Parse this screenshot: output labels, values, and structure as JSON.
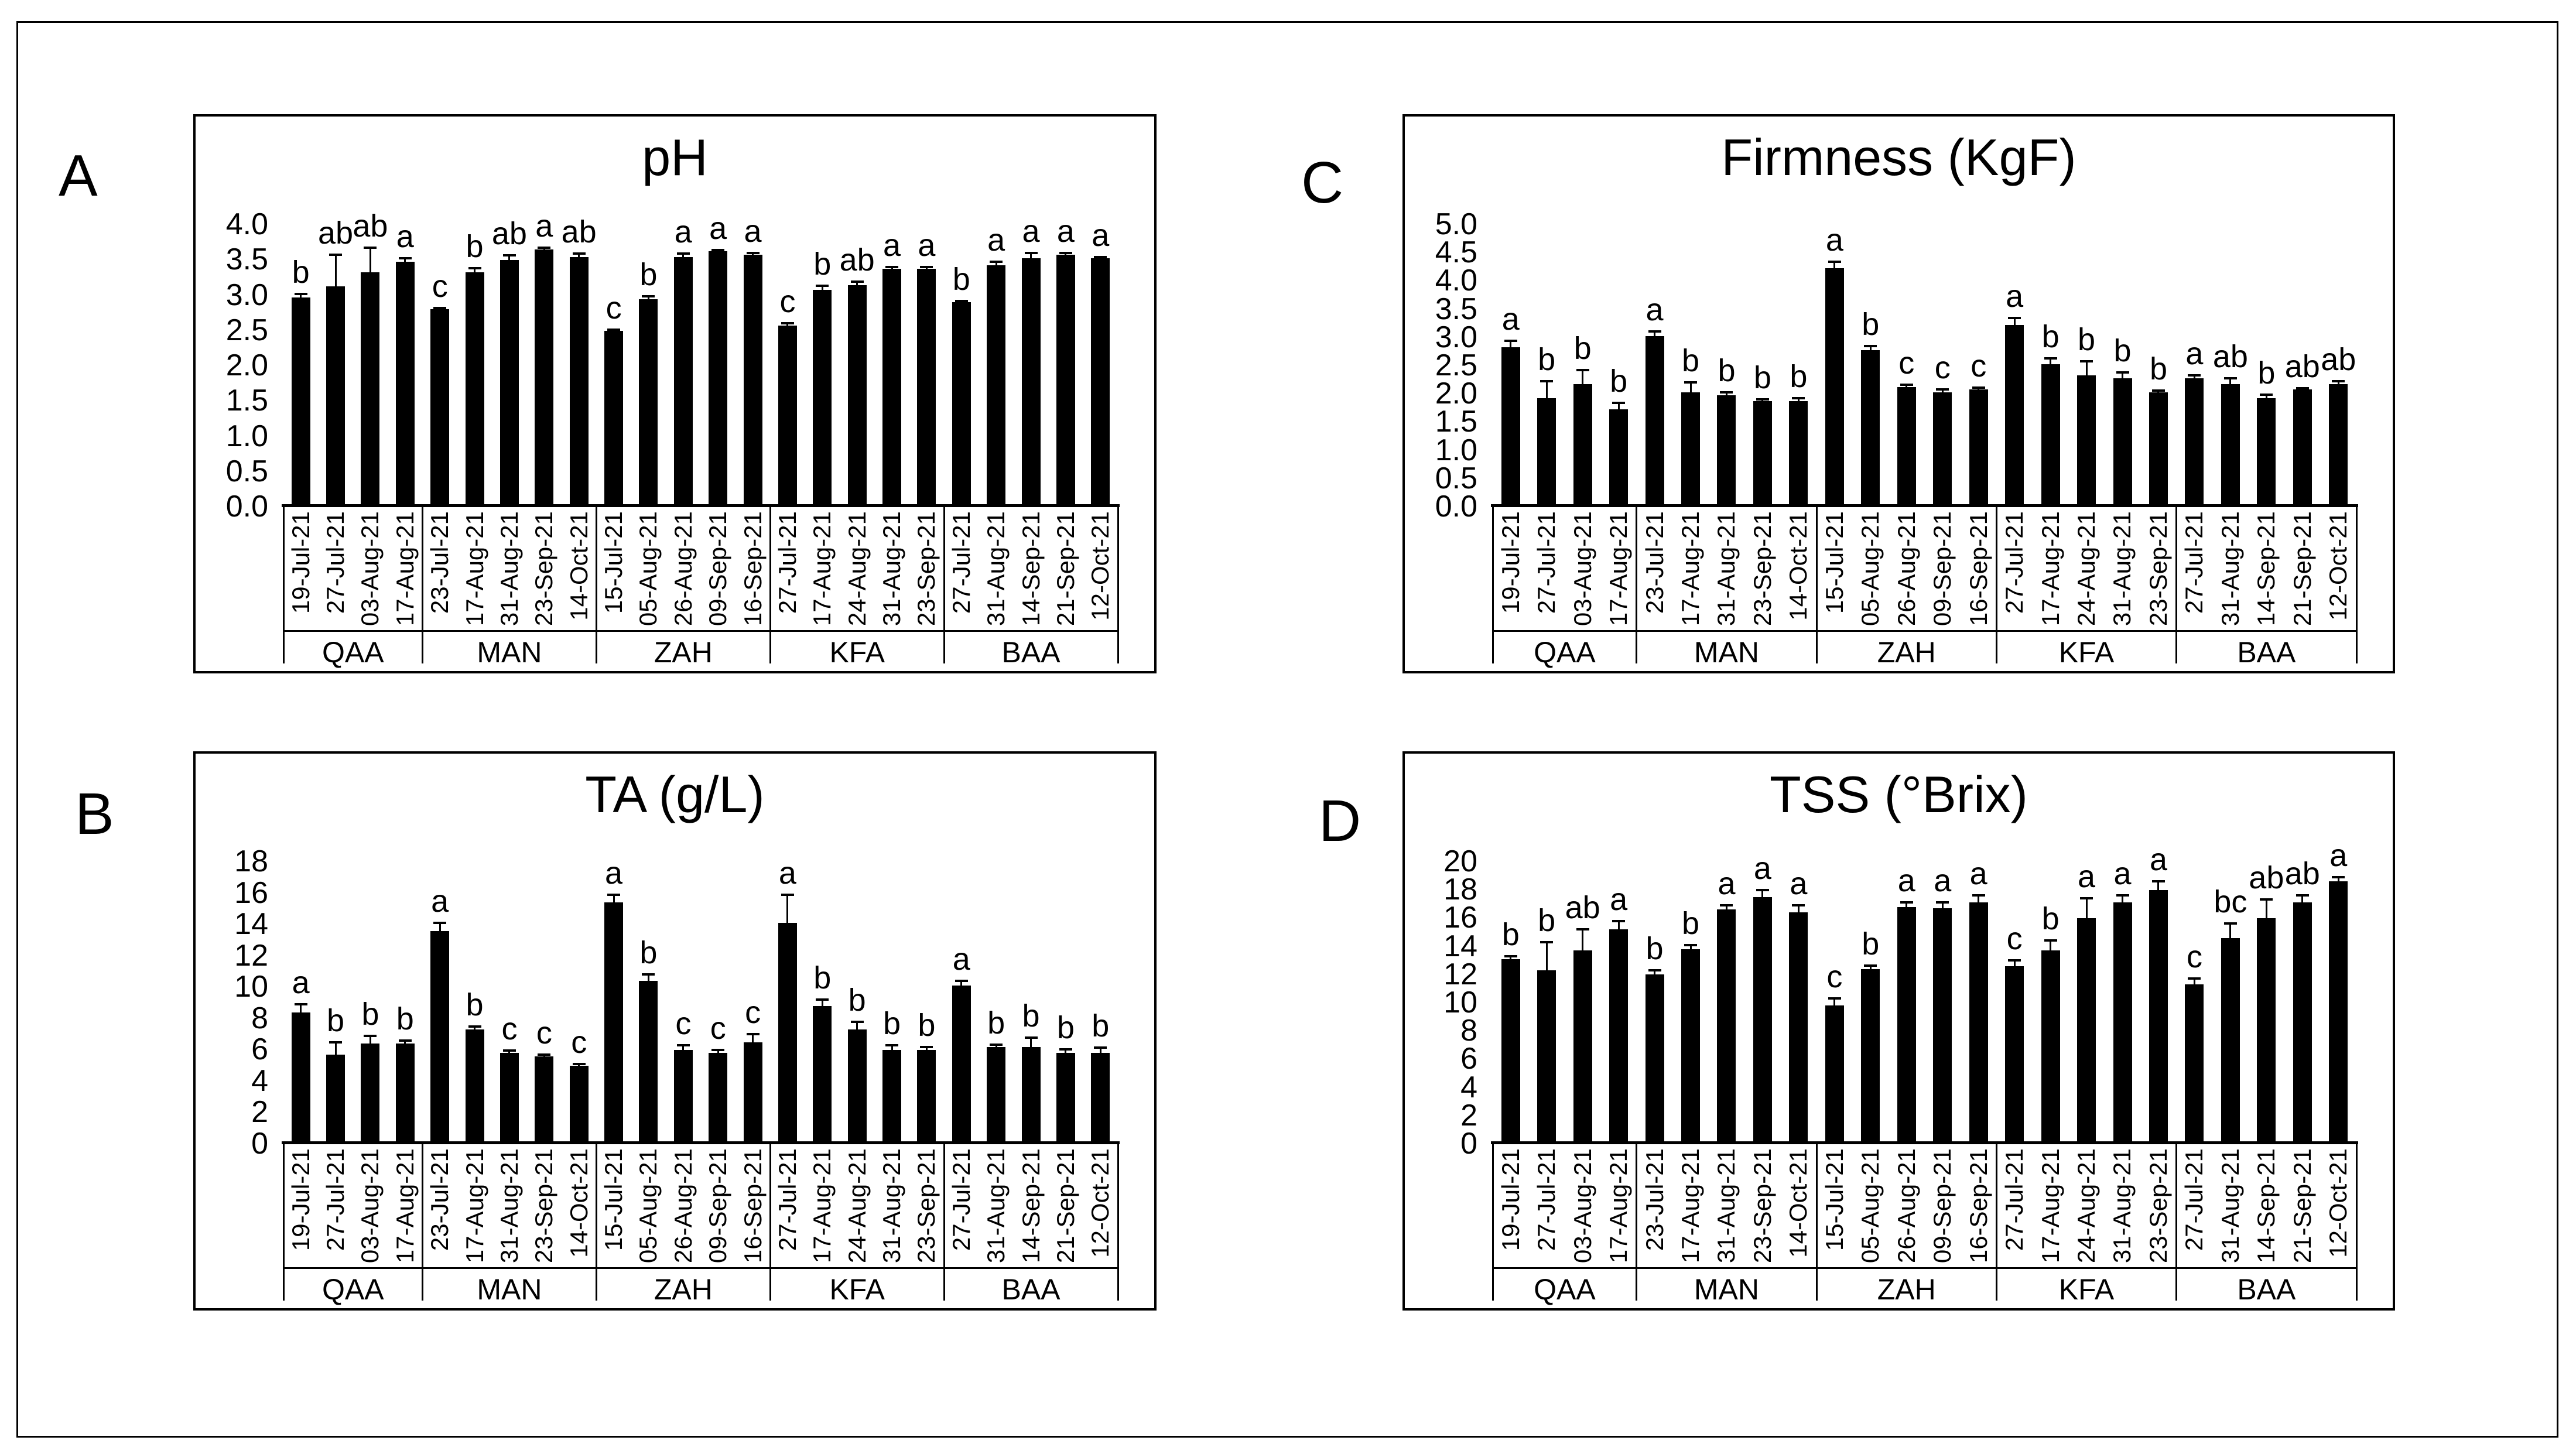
{
  "figure": {
    "background": "#ffffff",
    "bar_color": "#000000",
    "group_names": [
      "QAA",
      "MAN",
      "ZAH",
      "KFA",
      "BAA"
    ]
  },
  "chart_data": [
    {
      "type": "bar",
      "panel_label": "A",
      "title": "pH",
      "xlabel": "",
      "ylabel": "",
      "ylim": [
        0,
        4
      ],
      "ytick_step": 0.5,
      "ytick_decimals": 1,
      "grid": false,
      "bar_color": "#000000",
      "groups": [
        {
          "name": "QAA",
          "categories": [
            "19-Jul-21",
            "27-Jul-21",
            "03-Aug-21",
            "17-Aug-21"
          ],
          "values": [
            2.95,
            3.1,
            3.3,
            3.45
          ],
          "errors": [
            0.05,
            0.45,
            0.35,
            0.05
          ],
          "sig_letters": [
            "b",
            "ab",
            "ab",
            "a"
          ]
        },
        {
          "name": "MAN",
          "categories": [
            "23-Jul-21",
            "17-Aug-21",
            "31-Aug-21",
            "23-Sep-21",
            "14-Oct-21"
          ],
          "values": [
            2.78,
            3.3,
            3.48,
            3.63,
            3.52
          ],
          "errors": [
            0.02,
            0.06,
            0.06,
            0.02,
            0.05
          ],
          "sig_letters": [
            "c",
            "b",
            "ab",
            "a",
            "ab"
          ]
        },
        {
          "name": "ZAH",
          "categories": [
            "15-Jul-21",
            "05-Aug-21",
            "26-Aug-21",
            "09-Sep-21",
            "16-Sep-21"
          ],
          "values": [
            2.47,
            2.92,
            3.52,
            3.6,
            3.55
          ],
          "errors": [
            0.02,
            0.04,
            0.05,
            0.02,
            0.03
          ],
          "sig_letters": [
            "c",
            "b",
            "a",
            "a",
            "a"
          ]
        },
        {
          "name": "KFA",
          "categories": [
            "27-Jul-21",
            "17-Aug-21",
            "24-Aug-21",
            "31-Aug-21",
            "23-Sep-21"
          ],
          "values": [
            2.55,
            3.05,
            3.12,
            3.35,
            3.35
          ],
          "errors": [
            0.03,
            0.06,
            0.05,
            0.03,
            0.03
          ],
          "sig_letters": [
            "c",
            "b",
            "ab",
            "a",
            "a"
          ]
        },
        {
          "name": "BAA",
          "categories": [
            "27-Jul-21",
            "31-Aug-21",
            "14-Sep-21",
            "21-Sep-21",
            "12-Oct-21"
          ],
          "values": [
            2.88,
            3.4,
            3.5,
            3.55,
            3.5
          ],
          "errors": [
            0.02,
            0.05,
            0.08,
            0.03,
            0.02
          ],
          "sig_letters": [
            "b",
            "a",
            "a",
            "a",
            "a"
          ]
        }
      ]
    },
    {
      "type": "bar",
      "panel_label": "B",
      "title": "TA (g/L)",
      "xlabel": "",
      "ylabel": "",
      "ylim": [
        0,
        18
      ],
      "ytick_step": 2,
      "ytick_decimals": 0,
      "grid": false,
      "bar_color": "#000000",
      "groups": [
        {
          "name": "QAA",
          "categories": [
            "19-Jul-21",
            "27-Jul-21",
            "03-Aug-21",
            "17-Aug-21"
          ],
          "values": [
            8.3,
            5.6,
            6.3,
            6.3
          ],
          "errors": [
            0.5,
            0.8,
            0.5,
            0.2
          ],
          "sig_letters": [
            "a",
            "b",
            "b",
            "b"
          ]
        },
        {
          "name": "MAN",
          "categories": [
            "23-Jul-21",
            "17-Aug-21",
            "31-Aug-21",
            "23-Sep-21",
            "14-Oct-21"
          ],
          "values": [
            13.5,
            7.2,
            5.7,
            5.5,
            4.9
          ],
          "errors": [
            0.5,
            0.2,
            0.15,
            0.1,
            0.1
          ],
          "sig_letters": [
            "a",
            "b",
            "c",
            "c",
            "c"
          ]
        },
        {
          "name": "ZAH",
          "categories": [
            "15-Jul-21",
            "05-Aug-21",
            "26-Aug-21",
            "09-Sep-21",
            "16-Sep-21"
          ],
          "values": [
            15.3,
            10.3,
            5.9,
            5.7,
            6.4
          ],
          "errors": [
            0.5,
            0.4,
            0.3,
            0.2,
            0.5
          ],
          "sig_letters": [
            "a",
            "b",
            "c",
            "c",
            "c"
          ]
        },
        {
          "name": "KFA",
          "categories": [
            "27-Jul-21",
            "17-Aug-21",
            "24-Aug-21",
            "31-Aug-21",
            "23-Sep-21"
          ],
          "values": [
            14.0,
            8.7,
            7.2,
            5.9,
            5.9
          ],
          "errors": [
            1.8,
            0.4,
            0.5,
            0.3,
            0.2
          ],
          "sig_letters": [
            "a",
            "b",
            "b",
            "b",
            "b"
          ]
        },
        {
          "name": "BAA",
          "categories": [
            "27-Jul-21",
            "31-Aug-21",
            "14-Sep-21",
            "21-Sep-21",
            "12-Oct-21"
          ],
          "values": [
            10.0,
            6.1,
            6.1,
            5.7,
            5.7
          ],
          "errors": [
            0.3,
            0.15,
            0.6,
            0.25,
            0.35
          ],
          "sig_letters": [
            "a",
            "b",
            "b",
            "b",
            "b"
          ]
        }
      ]
    },
    {
      "type": "bar",
      "panel_label": "C",
      "title": "Firmness (KgF)",
      "xlabel": "",
      "ylabel": "",
      "ylim": [
        0,
        5
      ],
      "ytick_step": 0.5,
      "ytick_decimals": 1,
      "grid": false,
      "bar_color": "#000000",
      "groups": [
        {
          "name": "QAA",
          "categories": [
            "19-Jul-21",
            "27-Jul-21",
            "03-Aug-21",
            "17-Aug-21"
          ],
          "values": [
            2.8,
            1.9,
            2.15,
            1.7
          ],
          "errors": [
            0.12,
            0.3,
            0.25,
            0.12
          ],
          "sig_letters": [
            "a",
            "b",
            "b",
            "b"
          ]
        },
        {
          "name": "MAN",
          "categories": [
            "23-Jul-21",
            "17-Aug-21",
            "31-Aug-21",
            "23-Sep-21",
            "14-Oct-21"
          ],
          "values": [
            3.0,
            2.0,
            1.95,
            1.85,
            1.85
          ],
          "errors": [
            0.08,
            0.18,
            0.05,
            0.03,
            0.05
          ],
          "sig_letters": [
            "a",
            "b",
            "b",
            "b",
            "b"
          ]
        },
        {
          "name": "ZAH",
          "categories": [
            "15-Jul-21",
            "05-Aug-21",
            "26-Aug-21",
            "09-Sep-21",
            "16-Sep-21"
          ],
          "values": [
            4.2,
            2.75,
            2.1,
            2.0,
            2.05
          ],
          "errors": [
            0.12,
            0.07,
            0.04,
            0.05,
            0.04
          ],
          "sig_letters": [
            "a",
            "b",
            "c",
            "c",
            "c"
          ]
        },
        {
          "name": "KFA",
          "categories": [
            "27-Jul-21",
            "17-Aug-21",
            "24-Aug-21",
            "31-Aug-21",
            "23-Sep-21"
          ],
          "values": [
            3.2,
            2.5,
            2.3,
            2.25,
            2.0
          ],
          "errors": [
            0.12,
            0.1,
            0.25,
            0.1,
            0.03
          ],
          "sig_letters": [
            "a",
            "b",
            "b",
            "b",
            "b"
          ]
        },
        {
          "name": "BAA",
          "categories": [
            "27-Jul-21",
            "31-Aug-21",
            "14-Sep-21",
            "21-Sep-21",
            "12-Oct-21"
          ],
          "values": [
            2.25,
            2.15,
            1.9,
            2.05,
            2.15
          ],
          "errors": [
            0.05,
            0.1,
            0.06,
            0.02,
            0.05
          ],
          "sig_letters": [
            "a",
            "ab",
            "b",
            "ab",
            "ab"
          ]
        }
      ]
    },
    {
      "type": "bar",
      "panel_label": "D",
      "title": "TSS (°Brix)",
      "xlabel": "",
      "ylabel": "",
      "ylim": [
        0,
        20
      ],
      "ytick_step": 2,
      "ytick_decimals": 0,
      "grid": false,
      "bar_color": "#000000",
      "groups": [
        {
          "name": "QAA",
          "categories": [
            "19-Jul-21",
            "27-Jul-21",
            "03-Aug-21",
            "17-Aug-21"
          ],
          "values": [
            13.0,
            12.2,
            13.6,
            15.1
          ],
          "errors": [
            0.2,
            2.0,
            1.5,
            0.6
          ],
          "sig_letters": [
            "b",
            "b",
            "ab",
            "a"
          ]
        },
        {
          "name": "MAN",
          "categories": [
            "23-Jul-21",
            "17-Aug-21",
            "31-Aug-21",
            "23-Sep-21",
            "14-Oct-21"
          ],
          "values": [
            11.9,
            13.7,
            16.5,
            17.4,
            16.3
          ],
          "errors": [
            0.3,
            0.3,
            0.3,
            0.5,
            0.5
          ],
          "sig_letters": [
            "b",
            "b",
            "a",
            "a",
            "a"
          ]
        },
        {
          "name": "ZAH",
          "categories": [
            "15-Jul-21",
            "05-Aug-21",
            "26-Aug-21",
            "09-Sep-21",
            "16-Sep-21"
          ],
          "values": [
            9.7,
            12.3,
            16.7,
            16.6,
            17.0
          ],
          "errors": [
            0.5,
            0.25,
            0.3,
            0.4,
            0.5
          ],
          "sig_letters": [
            "c",
            "b",
            "a",
            "a",
            "a"
          ]
        },
        {
          "name": "KFA",
          "categories": [
            "27-Jul-21",
            "17-Aug-21",
            "24-Aug-21",
            "31-Aug-21",
            "23-Sep-21"
          ],
          "values": [
            12.5,
            13.6,
            15.9,
            17.0,
            17.9
          ],
          "errors": [
            0.4,
            0.7,
            1.4,
            0.5,
            0.6
          ],
          "sig_letters": [
            "c",
            "b",
            "a",
            "a",
            "a"
          ]
        },
        {
          "name": "BAA",
          "categories": [
            "27-Jul-21",
            "31-Aug-21",
            "14-Sep-21",
            "21-Sep-21",
            "12-Oct-21"
          ],
          "values": [
            11.2,
            14.5,
            15.9,
            17.0,
            18.5
          ],
          "errors": [
            0.4,
            1.0,
            1.3,
            0.5,
            0.3
          ],
          "sig_letters": [
            "c",
            "bc",
            "ab",
            "ab",
            "a"
          ]
        }
      ]
    }
  ]
}
